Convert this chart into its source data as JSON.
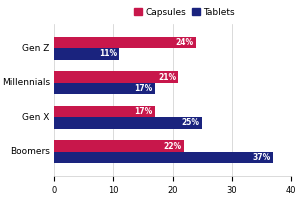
{
  "categories": [
    "Boomers",
    "Gen X",
    "Millennials",
    "Gen Z"
  ],
  "capsules": [
    22,
    17,
    21,
    24
  ],
  "tablets": [
    37,
    25,
    17,
    11
  ],
  "capsule_color": "#C8174B",
  "tablet_color": "#1A237E",
  "label_color": "#FFFFFF",
  "background_color": "#FFFFFF",
  "xlim": [
    0,
    40
  ],
  "xticks": [
    0,
    10,
    20,
    30,
    40
  ],
  "bar_height": 0.33,
  "label_fontsize": 5.5,
  "tick_fontsize": 6,
  "ylabel_fontsize": 6.5,
  "legend_fontsize": 6.5,
  "grid_color": "#CCCCCC"
}
